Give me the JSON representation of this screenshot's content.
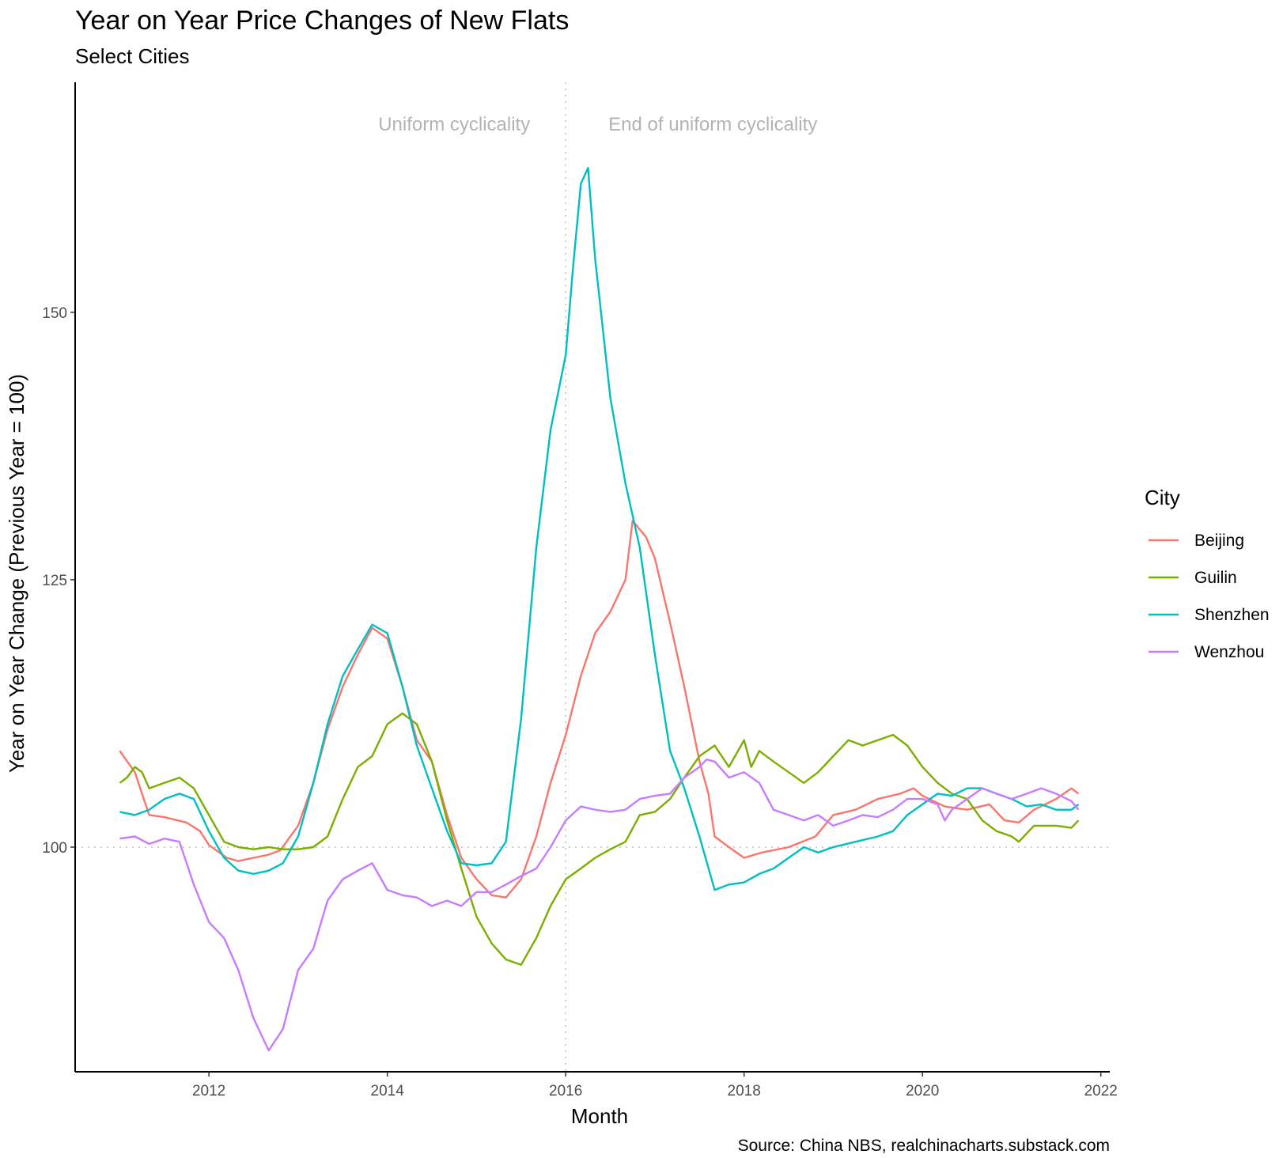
{
  "chart_data": {
    "type": "line",
    "title": "Year on Year Price Changes of New Flats",
    "subtitle": "Select Cities",
    "xlabel": "Month",
    "ylabel": "Year on Year Change (Previous Year = 100)",
    "caption": "Source: China NBS, realchinacharts.substack.com",
    "xlim": [
      2010.5,
      2022.1
    ],
    "ylim": [
      79,
      171.5
    ],
    "x_ticks": [
      2012,
      2014,
      2016,
      2018,
      2020,
      2022
    ],
    "y_ticks": [
      100,
      125,
      150
    ],
    "reference_lines": {
      "hline": 100,
      "vline": 2016.0
    },
    "annotations": [
      {
        "text": "Uniform cyclicality",
        "x": 2014.75,
        "y": 167
      },
      {
        "text": "End of uniform cyclicality",
        "x": 2017.65,
        "y": 167
      }
    ],
    "legend": {
      "title": "City",
      "position": "right"
    },
    "grid": false,
    "series": [
      {
        "name": "Beijing",
        "color": "#F8766D",
        "points": [
          [
            2011.0,
            109.0
          ],
          [
            2011.17,
            107.0
          ],
          [
            2011.33,
            103.0
          ],
          [
            2011.5,
            102.8
          ],
          [
            2011.75,
            102.3
          ],
          [
            2011.9,
            101.5
          ],
          [
            2012.0,
            100.2
          ],
          [
            2012.2,
            99.0
          ],
          [
            2012.33,
            98.7
          ],
          [
            2012.5,
            99.0
          ],
          [
            2012.67,
            99.3
          ],
          [
            2012.8,
            99.7
          ],
          [
            2013.0,
            102.0
          ],
          [
            2013.17,
            106.0
          ],
          [
            2013.33,
            111.0
          ],
          [
            2013.5,
            115.0
          ],
          [
            2013.67,
            118.0
          ],
          [
            2013.83,
            120.5
          ],
          [
            2014.0,
            119.5
          ],
          [
            2014.17,
            115.0
          ],
          [
            2014.33,
            110.0
          ],
          [
            2014.5,
            108.0
          ],
          [
            2014.67,
            103.0
          ],
          [
            2014.83,
            99.0
          ],
          [
            2015.0,
            97.0
          ],
          [
            2015.17,
            95.5
          ],
          [
            2015.33,
            95.3
          ],
          [
            2015.5,
            97.0
          ],
          [
            2015.67,
            101.0
          ],
          [
            2015.83,
            106.0
          ],
          [
            2016.0,
            110.5
          ],
          [
            2016.17,
            116.0
          ],
          [
            2016.33,
            120.0
          ],
          [
            2016.5,
            122.0
          ],
          [
            2016.67,
            125.0
          ],
          [
            2016.75,
            130.5
          ],
          [
            2016.9,
            129.0
          ],
          [
            2017.0,
            127.0
          ],
          [
            2017.17,
            121.0
          ],
          [
            2017.33,
            115.0
          ],
          [
            2017.5,
            108.0
          ],
          [
            2017.6,
            105.0
          ],
          [
            2017.67,
            101.0
          ],
          [
            2017.83,
            100.0
          ],
          [
            2018.0,
            99.0
          ],
          [
            2018.2,
            99.5
          ],
          [
            2018.5,
            100.0
          ],
          [
            2018.8,
            101.0
          ],
          [
            2019.0,
            103.0
          ],
          [
            2019.25,
            103.5
          ],
          [
            2019.5,
            104.5
          ],
          [
            2019.75,
            105.0
          ],
          [
            2019.9,
            105.5
          ],
          [
            2020.0,
            104.8
          ],
          [
            2020.25,
            103.8
          ],
          [
            2020.5,
            103.5
          ],
          [
            2020.75,
            104.0
          ],
          [
            2020.92,
            102.5
          ],
          [
            2021.08,
            102.3
          ],
          [
            2021.25,
            103.5
          ],
          [
            2021.5,
            104.5
          ],
          [
            2021.67,
            105.5
          ],
          [
            2021.75,
            105.0
          ]
        ]
      },
      {
        "name": "Guilin",
        "color": "#7CAE00",
        "points": [
          [
            2011.0,
            106.0
          ],
          [
            2011.08,
            106.5
          ],
          [
            2011.17,
            107.5
          ],
          [
            2011.25,
            107.0
          ],
          [
            2011.33,
            105.5
          ],
          [
            2011.5,
            106.0
          ],
          [
            2011.67,
            106.5
          ],
          [
            2011.83,
            105.5
          ],
          [
            2012.0,
            103.0
          ],
          [
            2012.17,
            100.5
          ],
          [
            2012.33,
            100.0
          ],
          [
            2012.5,
            99.8
          ],
          [
            2012.67,
            100.0
          ],
          [
            2012.83,
            99.8
          ],
          [
            2013.0,
            99.8
          ],
          [
            2013.17,
            100.0
          ],
          [
            2013.33,
            101.0
          ],
          [
            2013.5,
            104.5
          ],
          [
            2013.67,
            107.5
          ],
          [
            2013.83,
            108.5
          ],
          [
            2014.0,
            111.5
          ],
          [
            2014.17,
            112.5
          ],
          [
            2014.33,
            111.5
          ],
          [
            2014.5,
            108.0
          ],
          [
            2014.67,
            102.5
          ],
          [
            2014.83,
            98.0
          ],
          [
            2015.0,
            93.5
          ],
          [
            2015.17,
            91.0
          ],
          [
            2015.33,
            89.5
          ],
          [
            2015.5,
            89.0
          ],
          [
            2015.67,
            91.5
          ],
          [
            2015.83,
            94.5
          ],
          [
            2016.0,
            97.0
          ],
          [
            2016.17,
            98.0
          ],
          [
            2016.33,
            99.0
          ],
          [
            2016.5,
            99.8
          ],
          [
            2016.67,
            100.5
          ],
          [
            2016.83,
            103.0
          ],
          [
            2017.0,
            103.3
          ],
          [
            2017.17,
            104.5
          ],
          [
            2017.33,
            106.5
          ],
          [
            2017.5,
            108.5
          ],
          [
            2017.67,
            109.5
          ],
          [
            2017.83,
            107.5
          ],
          [
            2018.0,
            110.0
          ],
          [
            2018.08,
            107.5
          ],
          [
            2018.17,
            109.0
          ],
          [
            2018.33,
            108.0
          ],
          [
            2018.5,
            107.0
          ],
          [
            2018.67,
            106.0
          ],
          [
            2018.83,
            107.0
          ],
          [
            2019.0,
            108.5
          ],
          [
            2019.17,
            110.0
          ],
          [
            2019.33,
            109.5
          ],
          [
            2019.5,
            110.0
          ],
          [
            2019.67,
            110.5
          ],
          [
            2019.83,
            109.5
          ],
          [
            2020.0,
            107.5
          ],
          [
            2020.17,
            106.0
          ],
          [
            2020.33,
            105.0
          ],
          [
            2020.5,
            104.5
          ],
          [
            2020.67,
            102.5
          ],
          [
            2020.83,
            101.5
          ],
          [
            2021.0,
            101.0
          ],
          [
            2021.08,
            100.5
          ],
          [
            2021.25,
            102.0
          ],
          [
            2021.5,
            102.0
          ],
          [
            2021.67,
            101.8
          ],
          [
            2021.75,
            102.5
          ]
        ]
      },
      {
        "name": "Shenzhen",
        "color": "#00BFC4",
        "points": [
          [
            2011.0,
            103.3
          ],
          [
            2011.17,
            103.0
          ],
          [
            2011.33,
            103.5
          ],
          [
            2011.5,
            104.5
          ],
          [
            2011.67,
            105.0
          ],
          [
            2011.83,
            104.5
          ],
          [
            2012.0,
            101.5
          ],
          [
            2012.17,
            99.0
          ],
          [
            2012.33,
            97.8
          ],
          [
            2012.5,
            97.5
          ],
          [
            2012.67,
            97.8
          ],
          [
            2012.83,
            98.5
          ],
          [
            2013.0,
            101.0
          ],
          [
            2013.17,
            106.0
          ],
          [
            2013.33,
            111.5
          ],
          [
            2013.5,
            116.0
          ],
          [
            2013.67,
            118.5
          ],
          [
            2013.83,
            120.8
          ],
          [
            2014.0,
            120.0
          ],
          [
            2014.17,
            115.0
          ],
          [
            2014.33,
            109.5
          ],
          [
            2014.5,
            105.5
          ],
          [
            2014.67,
            101.5
          ],
          [
            2014.83,
            98.5
          ],
          [
            2015.0,
            98.3
          ],
          [
            2015.17,
            98.5
          ],
          [
            2015.33,
            100.5
          ],
          [
            2015.5,
            112.0
          ],
          [
            2015.67,
            128.0
          ],
          [
            2015.83,
            139.0
          ],
          [
            2016.0,
            146.0
          ],
          [
            2016.08,
            154.0
          ],
          [
            2016.17,
            162.0
          ],
          [
            2016.25,
            163.5
          ],
          [
            2016.33,
            155.0
          ],
          [
            2016.5,
            142.0
          ],
          [
            2016.67,
            134.0
          ],
          [
            2016.83,
            128.0
          ],
          [
            2017.0,
            118.0
          ],
          [
            2017.17,
            109.0
          ],
          [
            2017.33,
            105.5
          ],
          [
            2017.5,
            101.0
          ],
          [
            2017.67,
            96.0
          ],
          [
            2017.83,
            96.5
          ],
          [
            2018.0,
            96.7
          ],
          [
            2018.17,
            97.5
          ],
          [
            2018.33,
            98.0
          ],
          [
            2018.5,
            99.0
          ],
          [
            2018.67,
            100.0
          ],
          [
            2018.83,
            99.5
          ],
          [
            2019.0,
            100.0
          ],
          [
            2019.25,
            100.5
          ],
          [
            2019.5,
            101.0
          ],
          [
            2019.67,
            101.5
          ],
          [
            2019.83,
            103.0
          ],
          [
            2020.0,
            104.0
          ],
          [
            2020.17,
            105.0
          ],
          [
            2020.33,
            104.8
          ],
          [
            2020.5,
            105.5
          ],
          [
            2020.67,
            105.5
          ],
          [
            2020.83,
            105.0
          ],
          [
            2021.0,
            104.5
          ],
          [
            2021.17,
            103.8
          ],
          [
            2021.33,
            104.0
          ],
          [
            2021.5,
            103.5
          ],
          [
            2021.67,
            103.5
          ],
          [
            2021.75,
            104.0
          ]
        ]
      },
      {
        "name": "Wenzhou",
        "color": "#C77CFF",
        "points": [
          [
            2011.0,
            100.8
          ],
          [
            2011.17,
            101.0
          ],
          [
            2011.33,
            100.3
          ],
          [
            2011.5,
            100.8
          ],
          [
            2011.67,
            100.5
          ],
          [
            2011.83,
            96.5
          ],
          [
            2012.0,
            93.0
          ],
          [
            2012.17,
            91.5
          ],
          [
            2012.33,
            88.5
          ],
          [
            2012.5,
            84.0
          ],
          [
            2012.67,
            81.0
          ],
          [
            2012.83,
            83.0
          ],
          [
            2013.0,
            88.5
          ],
          [
            2013.17,
            90.5
          ],
          [
            2013.33,
            95.0
          ],
          [
            2013.5,
            97.0
          ],
          [
            2013.67,
            97.8
          ],
          [
            2013.83,
            98.5
          ],
          [
            2014.0,
            96.0
          ],
          [
            2014.17,
            95.5
          ],
          [
            2014.33,
            95.3
          ],
          [
            2014.5,
            94.5
          ],
          [
            2014.67,
            95.0
          ],
          [
            2014.83,
            94.5
          ],
          [
            2015.0,
            95.8
          ],
          [
            2015.17,
            95.8
          ],
          [
            2015.33,
            96.5
          ],
          [
            2015.5,
            97.3
          ],
          [
            2015.67,
            98.0
          ],
          [
            2015.83,
            100.0
          ],
          [
            2016.0,
            102.5
          ],
          [
            2016.17,
            103.8
          ],
          [
            2016.33,
            103.5
          ],
          [
            2016.5,
            103.3
          ],
          [
            2016.67,
            103.5
          ],
          [
            2016.83,
            104.5
          ],
          [
            2017.0,
            104.8
          ],
          [
            2017.17,
            105.0
          ],
          [
            2017.33,
            106.5
          ],
          [
            2017.5,
            107.5
          ],
          [
            2017.58,
            108.2
          ],
          [
            2017.67,
            108.0
          ],
          [
            2017.83,
            106.5
          ],
          [
            2018.0,
            107.0
          ],
          [
            2018.17,
            106.0
          ],
          [
            2018.33,
            103.5
          ],
          [
            2018.5,
            103.0
          ],
          [
            2018.67,
            102.5
          ],
          [
            2018.83,
            103.0
          ],
          [
            2019.0,
            102.0
          ],
          [
            2019.17,
            102.5
          ],
          [
            2019.33,
            103.0
          ],
          [
            2019.5,
            102.8
          ],
          [
            2019.67,
            103.5
          ],
          [
            2019.83,
            104.5
          ],
          [
            2020.0,
            104.5
          ],
          [
            2020.17,
            104.0
          ],
          [
            2020.25,
            102.5
          ],
          [
            2020.33,
            103.5
          ],
          [
            2020.5,
            104.5
          ],
          [
            2020.67,
            105.5
          ],
          [
            2020.83,
            105.0
          ],
          [
            2021.0,
            104.5
          ],
          [
            2021.17,
            105.0
          ],
          [
            2021.33,
            105.5
          ],
          [
            2021.5,
            105.0
          ],
          [
            2021.67,
            104.3
          ],
          [
            2021.75,
            103.5
          ]
        ]
      }
    ]
  }
}
